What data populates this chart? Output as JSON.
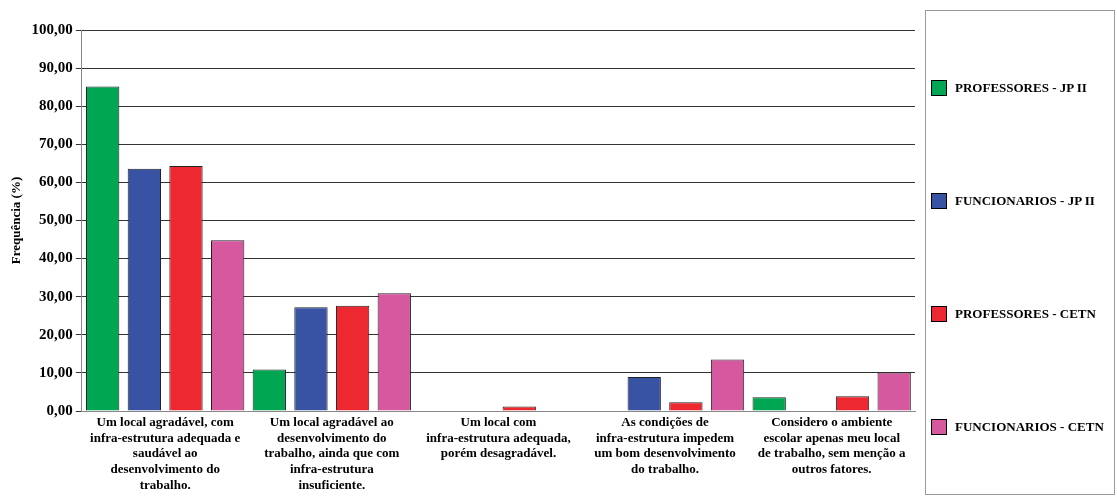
{
  "chart_data": {
    "type": "bar",
    "ylabel": "Frequência (%)",
    "categories": [
      "Um local agradável, com infra-estrutura adequada e saudável ao desenvolvimento do trabalho.",
      "Um local agradável ao desenvolvimento do trabalho, ainda que com infra-estrutura insuficiente.",
      "Um local com infra-estrutura adequada, porém desagradável.",
      "As condições de infra-estrutura impedem um bom desenvolvimento do trabalho.",
      "Considero o ambiente escolar apenas meu local de trabalho, sem menção a outros fatores."
    ],
    "series": [
      {
        "name": "PROFESSORES - JP II",
        "color": "#00a651",
        "values": [
          85.2,
          10.9,
          0,
          0,
          3.6
        ]
      },
      {
        "name": "FUNCIONARIOS - JP II",
        "color": "#3953a4",
        "values": [
          63.6,
          27.2,
          0,
          8.9,
          0
        ]
      },
      {
        "name": "PROFESSORES - CETN",
        "color": "#ed2830",
        "values": [
          64.3,
          27.6,
          1.2,
          2.3,
          3.9
        ]
      },
      {
        "name": "FUNCIONARIOS - CETN",
        "color": "#d6589f",
        "values": [
          44.8,
          30.9,
          0,
          13.5,
          10.1
        ]
      }
    ],
    "ylim": [
      0,
      100
    ],
    "yticks": [
      {
        "value": 0,
        "label": "0,00"
      },
      {
        "value": 10,
        "label": "10,00"
      },
      {
        "value": 20,
        "label": "20,00"
      },
      {
        "value": 30,
        "label": "30,00"
      },
      {
        "value": 40,
        "label": "40,00"
      },
      {
        "value": 50,
        "label": "50,00"
      },
      {
        "value": 60,
        "label": "60,00"
      },
      {
        "value": 70,
        "label": "70,00"
      },
      {
        "value": 80,
        "label": "80,00"
      },
      {
        "value": 90,
        "label": "90,00"
      },
      {
        "value": 100,
        "label": "100,00"
      }
    ],
    "grid": "y",
    "legend": "right"
  }
}
